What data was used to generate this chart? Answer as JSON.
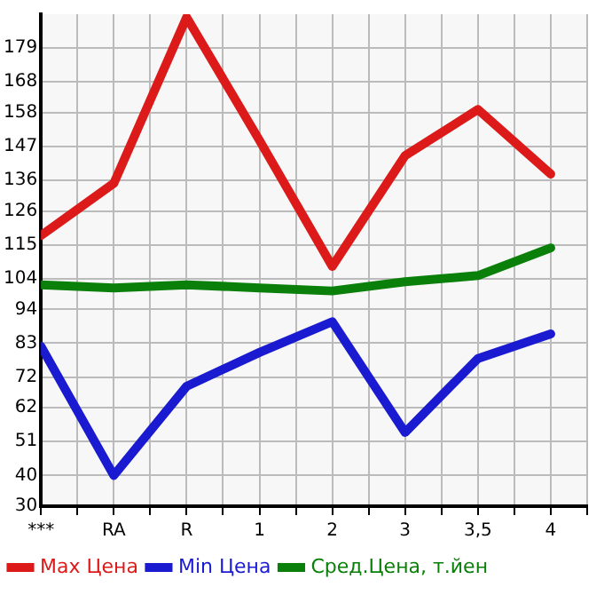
{
  "chart_data": {
    "type": "line",
    "categories": [
      "***",
      "RA",
      "R",
      "1",
      "2",
      "3",
      "3,5",
      "4"
    ],
    "series": [
      {
        "name": "Max Цена",
        "color": "#dd1a1a",
        "values": [
          118,
          135,
          189,
          149,
          108,
          144,
          159,
          138
        ]
      },
      {
        "name": "Min Цена",
        "color": "#1a1ad0",
        "values": [
          82,
          40,
          69,
          80,
          90,
          54,
          78,
          86
        ]
      },
      {
        "name": "Сред.Цена, т.йен",
        "color": "#0a800a",
        "values": [
          102,
          101,
          102,
          101,
          100,
          103,
          105,
          114
        ]
      }
    ],
    "ylim": [
      30,
      190
    ],
    "yticks": [
      30,
      40,
      51,
      62,
      72,
      83,
      94,
      104,
      115,
      126,
      136,
      147,
      158,
      168,
      179
    ],
    "grid": true,
    "legend": "bottom",
    "marker": "none",
    "line_style": "solid"
  }
}
